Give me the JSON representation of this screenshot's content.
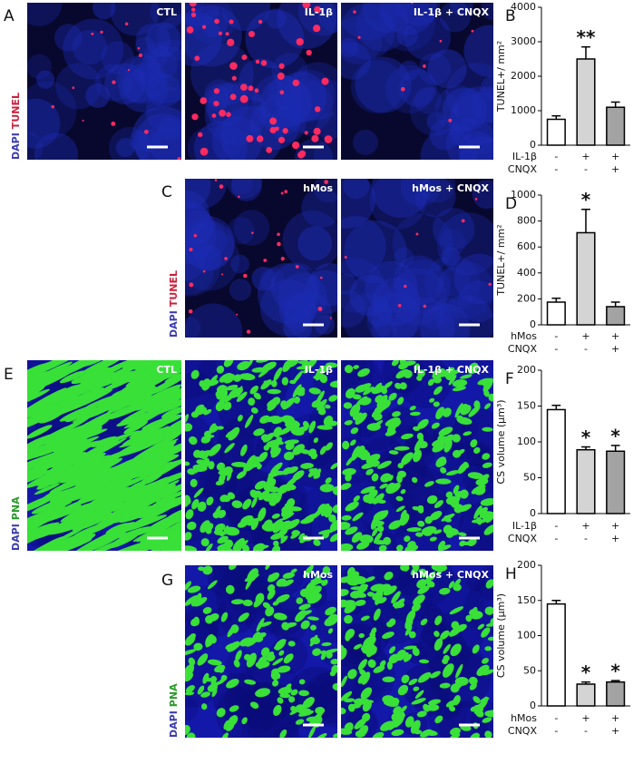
{
  "figure": {
    "panels": [
      {
        "letter": "A",
        "stain": [
          "DAPI",
          "TUNEL"
        ],
        "images": [
          "CTL",
          "IL-1β",
          "IL-1β + CNQX"
        ]
      },
      {
        "letter": "C",
        "stain": [
          "DAPI",
          "TUNEL"
        ],
        "images": [
          "hMos",
          "hMos + CNQX"
        ]
      },
      {
        "letter": "E",
        "stain": [
          "DAPI",
          "PNA"
        ],
        "images": [
          "CTL",
          "IL-1β",
          "IL-1β + CNQX"
        ]
      },
      {
        "letter": "G",
        "stain": [
          "DAPI",
          "PNA"
        ],
        "images": [
          "hMos",
          "hMos + CNQX"
        ]
      }
    ]
  },
  "chart_data": [
    {
      "type": "bar",
      "letter": "B",
      "ylabel": "TUNEL+/ mm²",
      "ylim": [
        0,
        4000
      ],
      "yticks": [
        0,
        1000,
        2000,
        3000,
        4000
      ],
      "values": [
        750,
        2500,
        1100
      ],
      "errors": [
        100,
        350,
        150
      ],
      "significance": [
        null,
        "**",
        null
      ],
      "colors": [
        "#ffffff",
        "#d4d4d4",
        "#a3a3a3"
      ],
      "treatments": [
        {
          "name": "IL-1β",
          "marks": [
            "-",
            "+",
            "+"
          ]
        },
        {
          "name": "CNQX",
          "marks": [
            "-",
            "-",
            "+"
          ]
        }
      ]
    },
    {
      "type": "bar",
      "letter": "D",
      "ylabel": "TUNEL+/ mm²",
      "ylim": [
        0,
        1000
      ],
      "yticks": [
        0,
        200,
        400,
        600,
        800,
        1000
      ],
      "values": [
        175,
        710,
        140
      ],
      "errors": [
        30,
        180,
        35
      ],
      "significance": [
        null,
        "*",
        null
      ],
      "colors": [
        "#ffffff",
        "#d4d4d4",
        "#a3a3a3"
      ],
      "treatments": [
        {
          "name": "hMos",
          "marks": [
            "-",
            "+",
            "+"
          ]
        },
        {
          "name": "CNQX",
          "marks": [
            "-",
            "-",
            "+"
          ]
        }
      ]
    },
    {
      "type": "bar",
      "letter": "F",
      "ylabel": "CS volume (µm³)",
      "ylim": [
        0,
        200
      ],
      "yticks": [
        0,
        50,
        100,
        150,
        200
      ],
      "values": [
        145,
        89,
        87
      ],
      "errors": [
        6,
        4,
        8
      ],
      "significance": [
        null,
        "*",
        "*"
      ],
      "colors": [
        "#ffffff",
        "#d4d4d4",
        "#a3a3a3"
      ],
      "treatments": [
        {
          "name": "IL-1β",
          "marks": [
            "-",
            "+",
            "+"
          ]
        },
        {
          "name": "CNQX",
          "marks": [
            "-",
            "-",
            "+"
          ]
        }
      ]
    },
    {
      "type": "bar",
      "letter": "H",
      "ylabel": "CS volume (µm³)",
      "ylim": [
        0,
        200
      ],
      "yticks": [
        0,
        50,
        100,
        150,
        200
      ],
      "values": [
        145,
        31,
        34
      ],
      "errors": [
        5,
        3,
        2
      ],
      "significance": [
        null,
        "*",
        "*"
      ],
      "colors": [
        "#ffffff",
        "#d4d4d4",
        "#a3a3a3"
      ],
      "treatments": [
        {
          "name": "hMos",
          "marks": [
            "-",
            "+",
            "+"
          ]
        },
        {
          "name": "CNQX",
          "marks": [
            "-",
            "-",
            "+"
          ]
        }
      ]
    }
  ]
}
